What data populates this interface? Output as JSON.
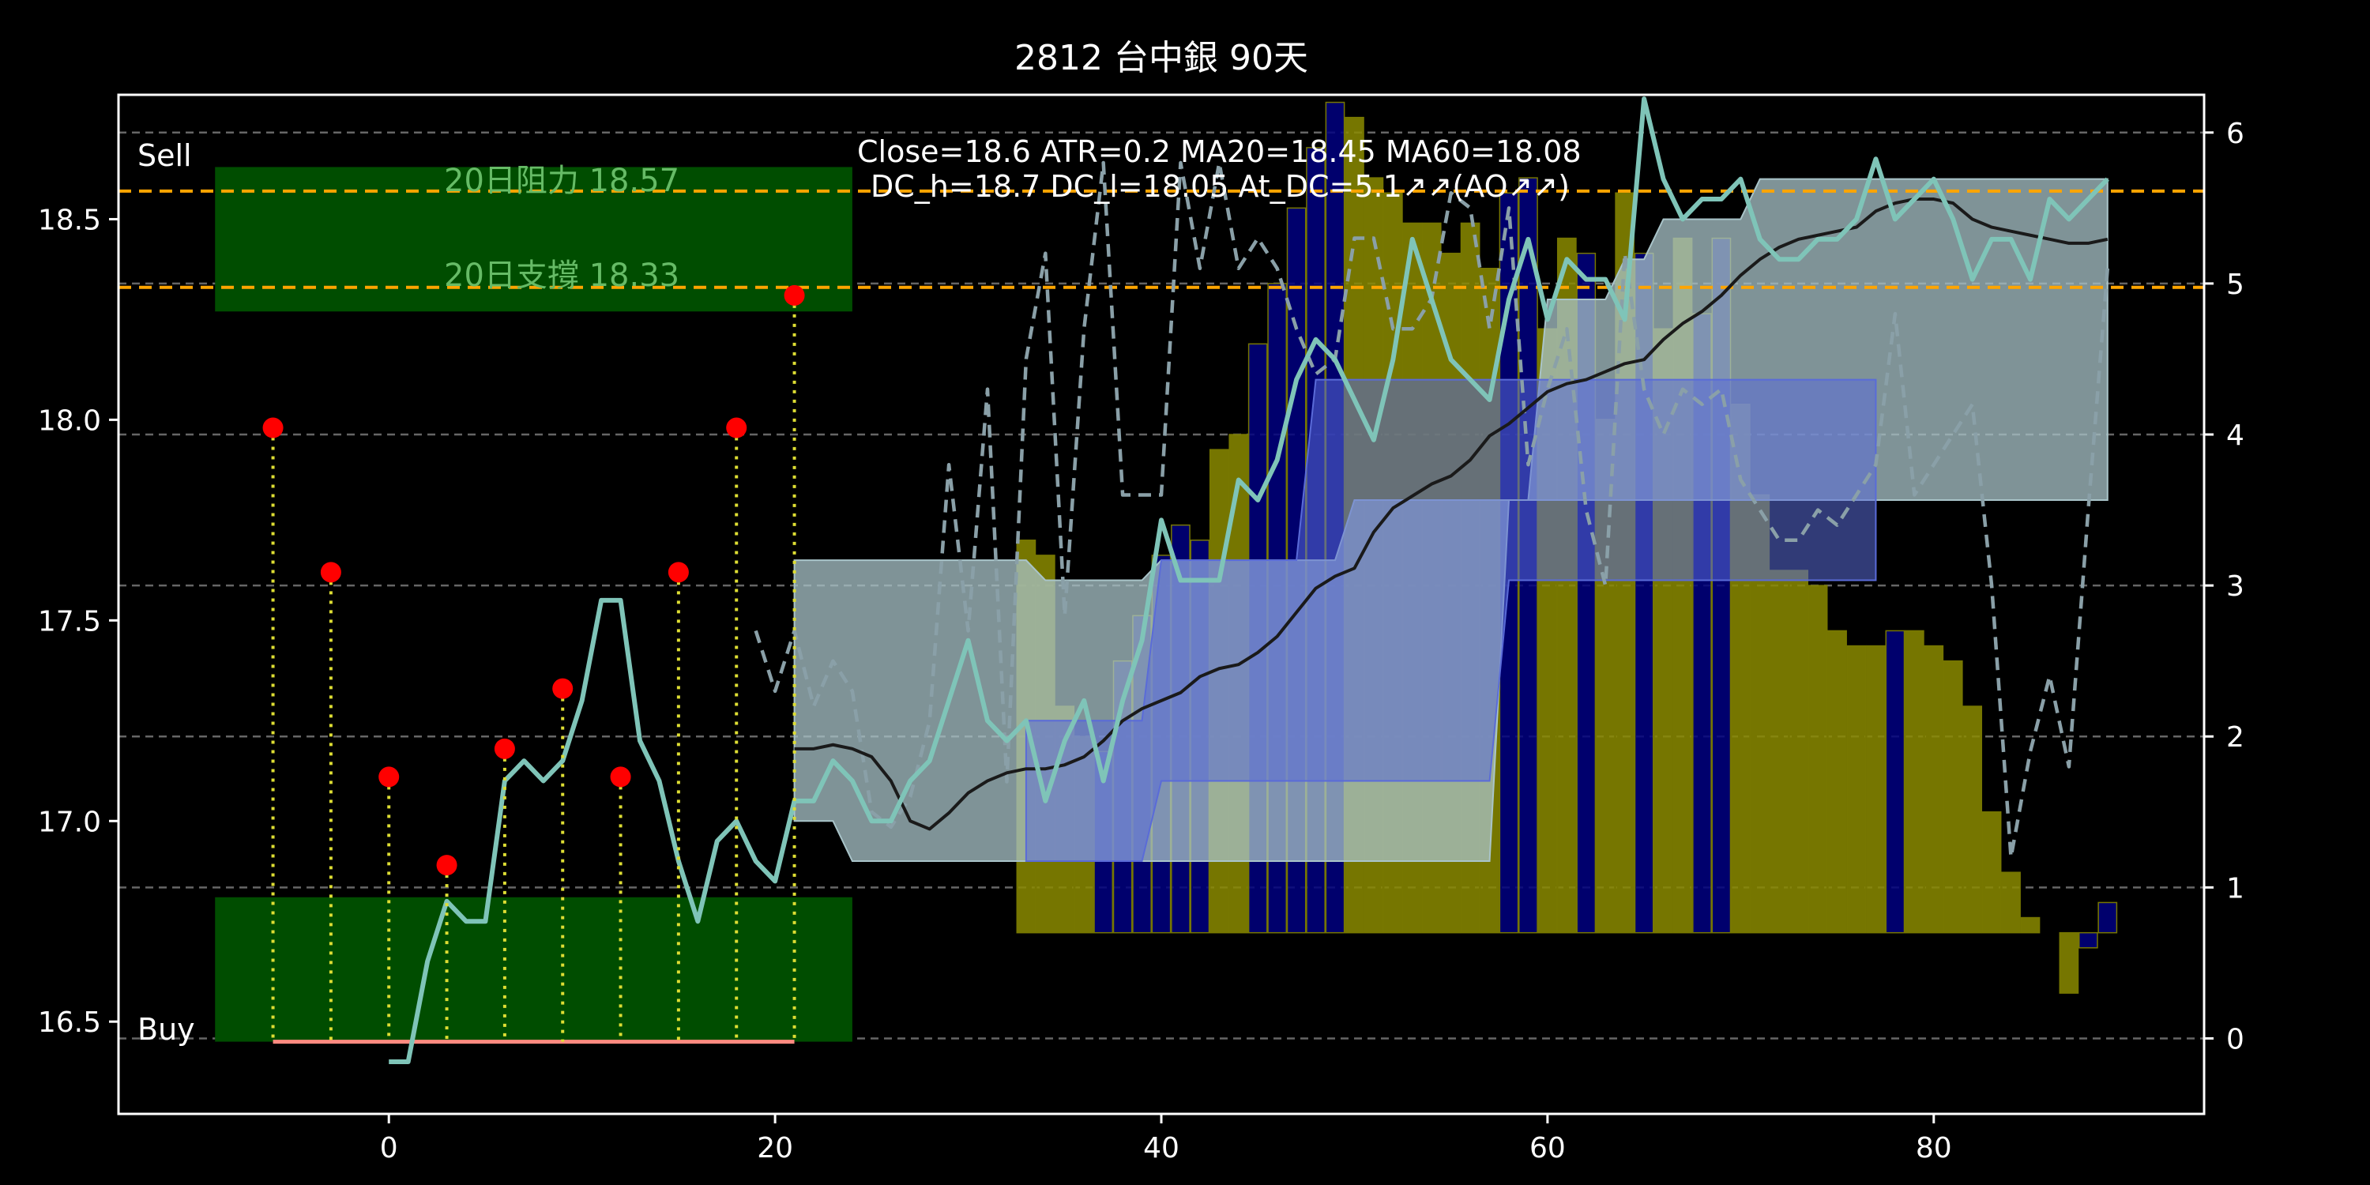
{
  "chart_data": {
    "type": "line",
    "title": "2812 台中銀 90天",
    "info_line1": "Close=18.6 ATR=0.2 MA20=18.45 MA60=18.08",
    "info_line2": "DC_h=18.7 DC_l=18.05 At_DC=5.1↗↗(AO↗↗)",
    "sell_label": "Sell",
    "buy_label": "Buy",
    "resistance_label": "20日阻力 18.57",
    "support_label": "20日支撐 18.33",
    "resistance": 18.57,
    "support": 18.33,
    "x_range": [
      -14,
      94
    ],
    "xlim": [
      -14,
      94
    ],
    "ylim": [
      16.27,
      18.81
    ],
    "y2lim": [
      -0.5,
      6.25
    ],
    "x_ticks": [
      0,
      20,
      40,
      60,
      80
    ],
    "y_ticks": [
      16.5,
      17.0,
      17.5,
      18.0,
      18.5
    ],
    "y2_ticks": [
      0,
      1,
      2,
      3,
      4,
      5,
      6
    ],
    "sell_zone": {
      "x": [
        -9,
        24
      ],
      "y": [
        18.27,
        18.63
      ]
    },
    "buy_zone": {
      "x": [
        -9,
        24
      ],
      "y": [
        16.45,
        16.81
      ]
    },
    "baseline": {
      "x": [
        -6,
        21
      ],
      "y": 16.45
    },
    "markers": [
      {
        "x": -6,
        "y": 17.98
      },
      {
        "x": -3,
        "y": 17.62
      },
      {
        "x": 0,
        "y": 17.11
      },
      {
        "x": 3,
        "y": 16.89
      },
      {
        "x": 6,
        "y": 17.18
      },
      {
        "x": 9,
        "y": 17.33
      },
      {
        "x": 12,
        "y": 17.11
      },
      {
        "x": 15,
        "y": 17.62
      },
      {
        "x": 18,
        "y": 17.98
      },
      {
        "x": 21,
        "y": 18.31
      }
    ],
    "close": {
      "x": [
        0,
        1,
        2,
        3,
        4,
        5,
        6,
        7,
        8,
        9,
        10,
        11,
        12,
        13,
        14,
        15,
        16,
        17,
        18,
        19,
        20,
        21,
        22,
        23,
        24,
        25,
        26,
        27,
        28,
        29,
        30,
        31,
        32,
        33,
        34,
        35,
        36,
        37,
        38,
        39,
        40,
        41,
        42,
        43,
        44,
        45,
        46,
        47,
        48,
        49,
        50,
        51,
        52,
        53,
        54,
        55,
        56,
        57,
        58,
        59,
        60,
        61,
        62,
        63,
        64,
        65,
        66,
        67,
        68,
        69,
        70,
        71,
        72,
        73,
        74,
        75,
        76,
        77,
        78,
        79,
        80,
        81,
        82,
        83,
        84,
        85,
        86,
        87,
        88,
        89
      ],
      "values": [
        16.4,
        16.4,
        16.65,
        16.8,
        16.75,
        16.75,
        17.1,
        17.15,
        17.1,
        17.15,
        17.3,
        17.55,
        17.55,
        17.2,
        17.1,
        16.9,
        16.75,
        16.95,
        17.0,
        16.9,
        16.85,
        17.05,
        17.05,
        17.15,
        17.1,
        17.0,
        17.0,
        17.1,
        17.15,
        17.3,
        17.45,
        17.25,
        17.2,
        17.25,
        17.05,
        17.2,
        17.3,
        17.1,
        17.3,
        17.45,
        17.75,
        17.6,
        17.6,
        17.6,
        17.85,
        17.8,
        17.9,
        18.1,
        18.2,
        18.15,
        18.05,
        17.95,
        18.15,
        18.45,
        18.3,
        18.15,
        18.1,
        18.05,
        18.3,
        18.45,
        18.25,
        18.4,
        18.35,
        18.35,
        18.25,
        18.8,
        18.6,
        18.5,
        18.55,
        18.55,
        18.6,
        18.45,
        18.4,
        18.4,
        18.45,
        18.45,
        18.5,
        18.65,
        18.5,
        18.55,
        18.6,
        18.5,
        18.35,
        18.45,
        18.45,
        18.35,
        18.55,
        18.5,
        18.55,
        18.6
      ]
    },
    "ma20": {
      "x": [
        21,
        22,
        23,
        24,
        25,
        26,
        27,
        28,
        29,
        30,
        31,
        32,
        33,
        34,
        35,
        36,
        37,
        38,
        39,
        40,
        41,
        42,
        43,
        44,
        45,
        46,
        47,
        48,
        49,
        50,
        51,
        52,
        53,
        54,
        55,
        56,
        57,
        58,
        59,
        60,
        61,
        62,
        63,
        64,
        65,
        66,
        67,
        68,
        69,
        70,
        71,
        72,
        73,
        74,
        75,
        76,
        77,
        78,
        79,
        80,
        81,
        82,
        83,
        84,
        85,
        86,
        87,
        88,
        89
      ],
      "values": [
        17.18,
        17.18,
        17.19,
        17.18,
        17.16,
        17.1,
        17.0,
        16.98,
        17.02,
        17.07,
        17.1,
        17.12,
        17.13,
        17.13,
        17.14,
        17.16,
        17.2,
        17.25,
        17.28,
        17.3,
        17.32,
        17.36,
        17.38,
        17.39,
        17.42,
        17.46,
        17.52,
        17.58,
        17.61,
        17.63,
        17.72,
        17.78,
        17.81,
        17.84,
        17.86,
        17.9,
        17.96,
        17.99,
        18.03,
        18.07,
        18.09,
        18.1,
        18.12,
        18.14,
        18.15,
        18.2,
        18.24,
        18.27,
        18.31,
        18.36,
        18.4,
        18.43,
        18.45,
        18.46,
        18.47,
        18.48,
        18.52,
        18.54,
        18.55,
        18.55,
        18.54,
        18.5,
        18.48,
        18.47,
        18.46,
        18.45,
        18.44,
        18.44,
        18.45
      ]
    },
    "osc": {
      "x": [
        19,
        20,
        21,
        22,
        23,
        24,
        25,
        26,
        27,
        28,
        29,
        30,
        31,
        32,
        33,
        34,
        35,
        36,
        37,
        38,
        39,
        40,
        41,
        42,
        43,
        44,
        45,
        46,
        47,
        48,
        49,
        50,
        51,
        52,
        53,
        54,
        55,
        56,
        57,
        58,
        59,
        60,
        61,
        62,
        63,
        64,
        65,
        66,
        67,
        68,
        69,
        70,
        71,
        72,
        73,
        74,
        75,
        76,
        77,
        78,
        79,
        80,
        81,
        82,
        83,
        84,
        85,
        86,
        87,
        88,
        89
      ],
      "values": [
        2.7,
        2.3,
        2.7,
        2.2,
        2.5,
        2.3,
        1.5,
        1.4,
        1.6,
        2.1,
        3.8,
        2.7,
        4.3,
        1.7,
        4.5,
        5.2,
        2.8,
        4.7,
        5.8,
        3.6,
        3.6,
        3.6,
        5.8,
        5.1,
        5.8,
        5.1,
        5.3,
        5.1,
        4.7,
        4.4,
        4.5,
        5.3,
        5.3,
        4.7,
        4.7,
        4.9,
        5.6,
        5.5,
        4.7,
        5.5,
        3.8,
        4.3,
        4.7,
        3.5,
        3.0,
        5.2,
        4.3,
        4.0,
        4.3,
        4.2,
        4.3,
        3.7,
        3.5,
        3.3,
        3.3,
        3.5,
        3.4,
        3.6,
        3.8,
        4.8,
        3.6,
        3.8,
        4.0,
        4.2,
        3.0,
        1.2,
        1.9,
        2.4,
        1.8,
        3.5,
        5.1
      ]
    },
    "histogram": {
      "x": [
        33,
        34,
        35,
        36,
        37,
        38,
        39,
        40,
        41,
        42,
        43,
        44,
        45,
        46,
        47,
        48,
        49,
        50,
        51,
        52,
        53,
        54,
        55,
        56,
        57,
        58,
        59,
        60,
        61,
        62,
        63,
        64,
        65,
        66,
        67,
        68,
        69,
        70,
        71,
        72,
        73,
        74,
        75,
        76,
        77,
        78,
        79,
        80,
        81,
        82,
        83,
        84,
        85,
        86,
        87,
        88
      ],
      "values": [
        3.0,
        2.5,
        1.8,
        1.5,
        1.3,
        2.4,
        2.5,
        2.5,
        2.8,
        3.3,
        3.2,
        3.1,
        3.1,
        3.1,
        3.1,
        3.1,
        3.1,
        3.1,
        3.1,
        3.1,
        3.1,
        3.1,
        3.1,
        3.1,
        3.1,
        3.1,
        3.1,
        3.1,
        3.1,
        3.1,
        3.1,
        3.1,
        3.1,
        3.1,
        3.1,
        3.1,
        3.1,
        3.1,
        3.1,
        3.1,
        3.1,
        3.1,
        3.1,
        3.1,
        3.1,
        3.1,
        3.1,
        3.1,
        3.1,
        3.1,
        3.1,
        3.1,
        3.1,
        3.1,
        3.1,
        3.1
      ]
    },
    "bars": {
      "x": [
        33,
        34,
        35,
        36,
        37,
        38,
        39,
        40,
        41,
        42,
        43,
        44,
        45,
        46,
        47,
        48,
        49,
        50,
        51,
        52,
        53,
        54,
        55,
        56,
        57,
        58,
        59,
        60,
        61,
        62,
        63,
        64,
        65,
        66,
        67,
        68,
        69,
        70,
        71,
        72,
        73,
        74,
        75,
        76,
        77,
        78,
        79,
        80,
        81,
        82,
        83,
        84,
        85,
        86,
        87,
        88,
        89
      ],
      "values": [
        3.3,
        3.2,
        2.2,
        2.0,
        1.9,
        2.5,
        2.8,
        3.2,
        3.4,
        3.3,
        3.9,
        4.0,
        4.6,
        5.0,
        5.5,
        5.9,
        6.2,
        6.1,
        5.7,
        5.6,
        5.4,
        5.4,
        5.2,
        5.4,
        5.1,
        5.6,
        5.7,
        4.7,
        5.3,
        5.2,
        4.1,
        5.6,
        5.2,
        4.7,
        5.3,
        4.8,
        5.3,
        4.2,
        3.6,
        3.1,
        3.1,
        3.0,
        2.7,
        2.6,
        2.6,
        2.7,
        2.7,
        2.6,
        2.5,
        2.2,
        1.5,
        1.1,
        0.8,
        0.7,
        0.3,
        0.6,
        0.9
      ],
      "colors": [
        "#8b8b00",
        "#8b8b00",
        "#8b8b00",
        "#8b8b00",
        "#000080",
        "#000080",
        "#000080",
        "#000080",
        "#000080",
        "#000080",
        "#8b8b00",
        "#8b8b00",
        "#000080",
        "#000080",
        "#000080",
        "#000080",
        "#000080",
        "#8b8b00",
        "#8b8b00",
        "#8b8b00",
        "#8b8b00",
        "#8b8b00",
        "#8b8b00",
        "#8b8b00",
        "#8b8b00",
        "#000080",
        "#000080",
        "#8b8b00",
        "#8b8b00",
        "#000080",
        "#8b8b00",
        "#8b8b00",
        "#000080",
        "#8b8b00",
        "#8b8b00",
        "#000080",
        "#000080",
        "#8b8b00",
        "#8b8b00",
        "#8b8b00",
        "#8b8b00",
        "#8b8b00",
        "#8b8b00",
        "#8b8b00",
        "#8b8b00",
        "#000080",
        "#8b8b00",
        "#8b8b00",
        "#8b8b00",
        "#8b8b00",
        "#8b8b00",
        "#8b8b00",
        "#8b8b00",
        "#8b8b00",
        "#8b8b00",
        "#000080",
        "#000080"
      ]
    },
    "cloud": {
      "x": [
        21,
        22,
        23,
        24,
        25,
        26,
        27,
        28,
        29,
        30,
        31,
        32,
        33,
        34,
        35,
        36,
        37,
        38,
        39,
        40,
        41,
        42,
        43,
        44,
        45,
        46,
        47,
        48,
        49,
        50,
        51,
        52,
        53,
        54,
        55,
        56,
        57,
        58,
        59,
        60,
        61,
        62,
        63,
        64,
        65,
        66,
        67,
        68,
        69,
        70,
        71,
        72,
        73,
        74,
        75,
        76,
        77,
        78,
        79,
        80,
        81,
        82,
        83,
        84,
        85,
        86,
        87,
        88,
        89
      ],
      "upper": [
        17.65,
        17.65,
        17.65,
        17.65,
        17.65,
        17.65,
        17.65,
        17.65,
        17.65,
        17.65,
        17.65,
        17.65,
        17.65,
        17.6,
        17.6,
        17.6,
        17.6,
        17.6,
        17.6,
        17.65,
        17.65,
        17.65,
        17.65,
        17.65,
        17.65,
        17.65,
        17.65,
        17.65,
        17.65,
        17.8,
        17.8,
        17.8,
        17.8,
        17.8,
        17.8,
        17.8,
        17.8,
        17.8,
        17.8,
        18.3,
        18.3,
        18.3,
        18.3,
        18.4,
        18.4,
        18.5,
        18.5,
        18.5,
        18.5,
        18.5,
        18.6,
        18.6,
        18.6,
        18.6,
        18.6,
        18.6,
        18.6,
        18.6,
        18.6,
        18.6,
        18.6,
        18.6,
        18.6,
        18.6,
        18.6,
        18.6,
        18.6,
        18.6,
        18.6
      ],
      "lower": [
        17.0,
        17.0,
        17.0,
        16.9,
        16.9,
        16.9,
        16.9,
        16.9,
        16.9,
        16.9,
        16.9,
        16.9,
        16.9,
        16.9,
        16.9,
        16.9,
        16.9,
        16.9,
        16.9,
        16.9,
        16.9,
        16.9,
        16.9,
        16.9,
        16.9,
        16.9,
        16.9,
        16.9,
        16.9,
        16.9,
        16.9,
        16.9,
        16.9,
        16.9,
        16.9,
        16.9,
        16.9,
        17.8,
        17.8,
        17.8,
        17.8,
        17.8,
        17.8,
        17.8,
        17.8,
        17.8,
        17.8,
        17.8,
        17.8,
        17.8,
        17.8,
        17.8,
        17.8,
        17.8,
        17.8,
        17.8,
        17.8,
        17.8,
        17.8,
        17.8,
        17.8,
        17.8,
        17.8,
        17.8,
        17.8,
        17.8,
        17.8,
        17.8,
        17.8
      ]
    },
    "cloud2": {
      "x": [
        33,
        34,
        35,
        36,
        37,
        38,
        39,
        40,
        41,
        42,
        43,
        44,
        45,
        46,
        47,
        48,
        49,
        50,
        51,
        52,
        53,
        54,
        55,
        56,
        57,
        58,
        59,
        60,
        61,
        62,
        63,
        64,
        65,
        66,
        67,
        68,
        69,
        70,
        71,
        72,
        73,
        74,
        75,
        76,
        77
      ],
      "upper": [
        17.25,
        17.25,
        17.25,
        17.25,
        17.25,
        17.25,
        17.25,
        17.65,
        17.65,
        17.65,
        17.65,
        17.65,
        17.65,
        17.65,
        17.65,
        18.1,
        18.1,
        18.1,
        18.1,
        18.1,
        18.1,
        18.1,
        18.1,
        18.1,
        18.1,
        18.1,
        18.1,
        18.1,
        18.1,
        18.1,
        18.1,
        18.1,
        18.1,
        18.1,
        18.1,
        18.1,
        18.1,
        18.1,
        18.1,
        18.1,
        18.1,
        18.1,
        18.1,
        18.1,
        18.1
      ],
      "lower": [
        16.9,
        16.9,
        16.9,
        16.9,
        16.9,
        16.9,
        16.9,
        17.1,
        17.1,
        17.1,
        17.1,
        17.1,
        17.1,
        17.1,
        17.1,
        17.1,
        17.1,
        17.1,
        17.1,
        17.1,
        17.1,
        17.1,
        17.1,
        17.1,
        17.1,
        17.6,
        17.6,
        17.6,
        17.6,
        17.6,
        17.6,
        17.6,
        17.6,
        17.6,
        17.6,
        17.6,
        17.6,
        17.6,
        17.6,
        17.6,
        17.6,
        17.6,
        17.6,
        17.6,
        17.6
      ]
    },
    "colors": {
      "background": "#000000",
      "resistance": "#ffa500",
      "support": "#ffa500",
      "zone": "#004d00",
      "zone_text": "#66bb66",
      "marker": "#ff0000",
      "stem": "#dddd33",
      "baseline": "#ff8a80",
      "close": "#7fc4b8",
      "ma20": "#1a1a1a",
      "osc": "#8aa0a8",
      "cloud": "#a9c4c9",
      "cloud2": "#5a6bd8",
      "cloud3": "#d8f080",
      "grid": "#666666",
      "text": "#ffffff"
    },
    "grid": true,
    "legend": "none"
  }
}
